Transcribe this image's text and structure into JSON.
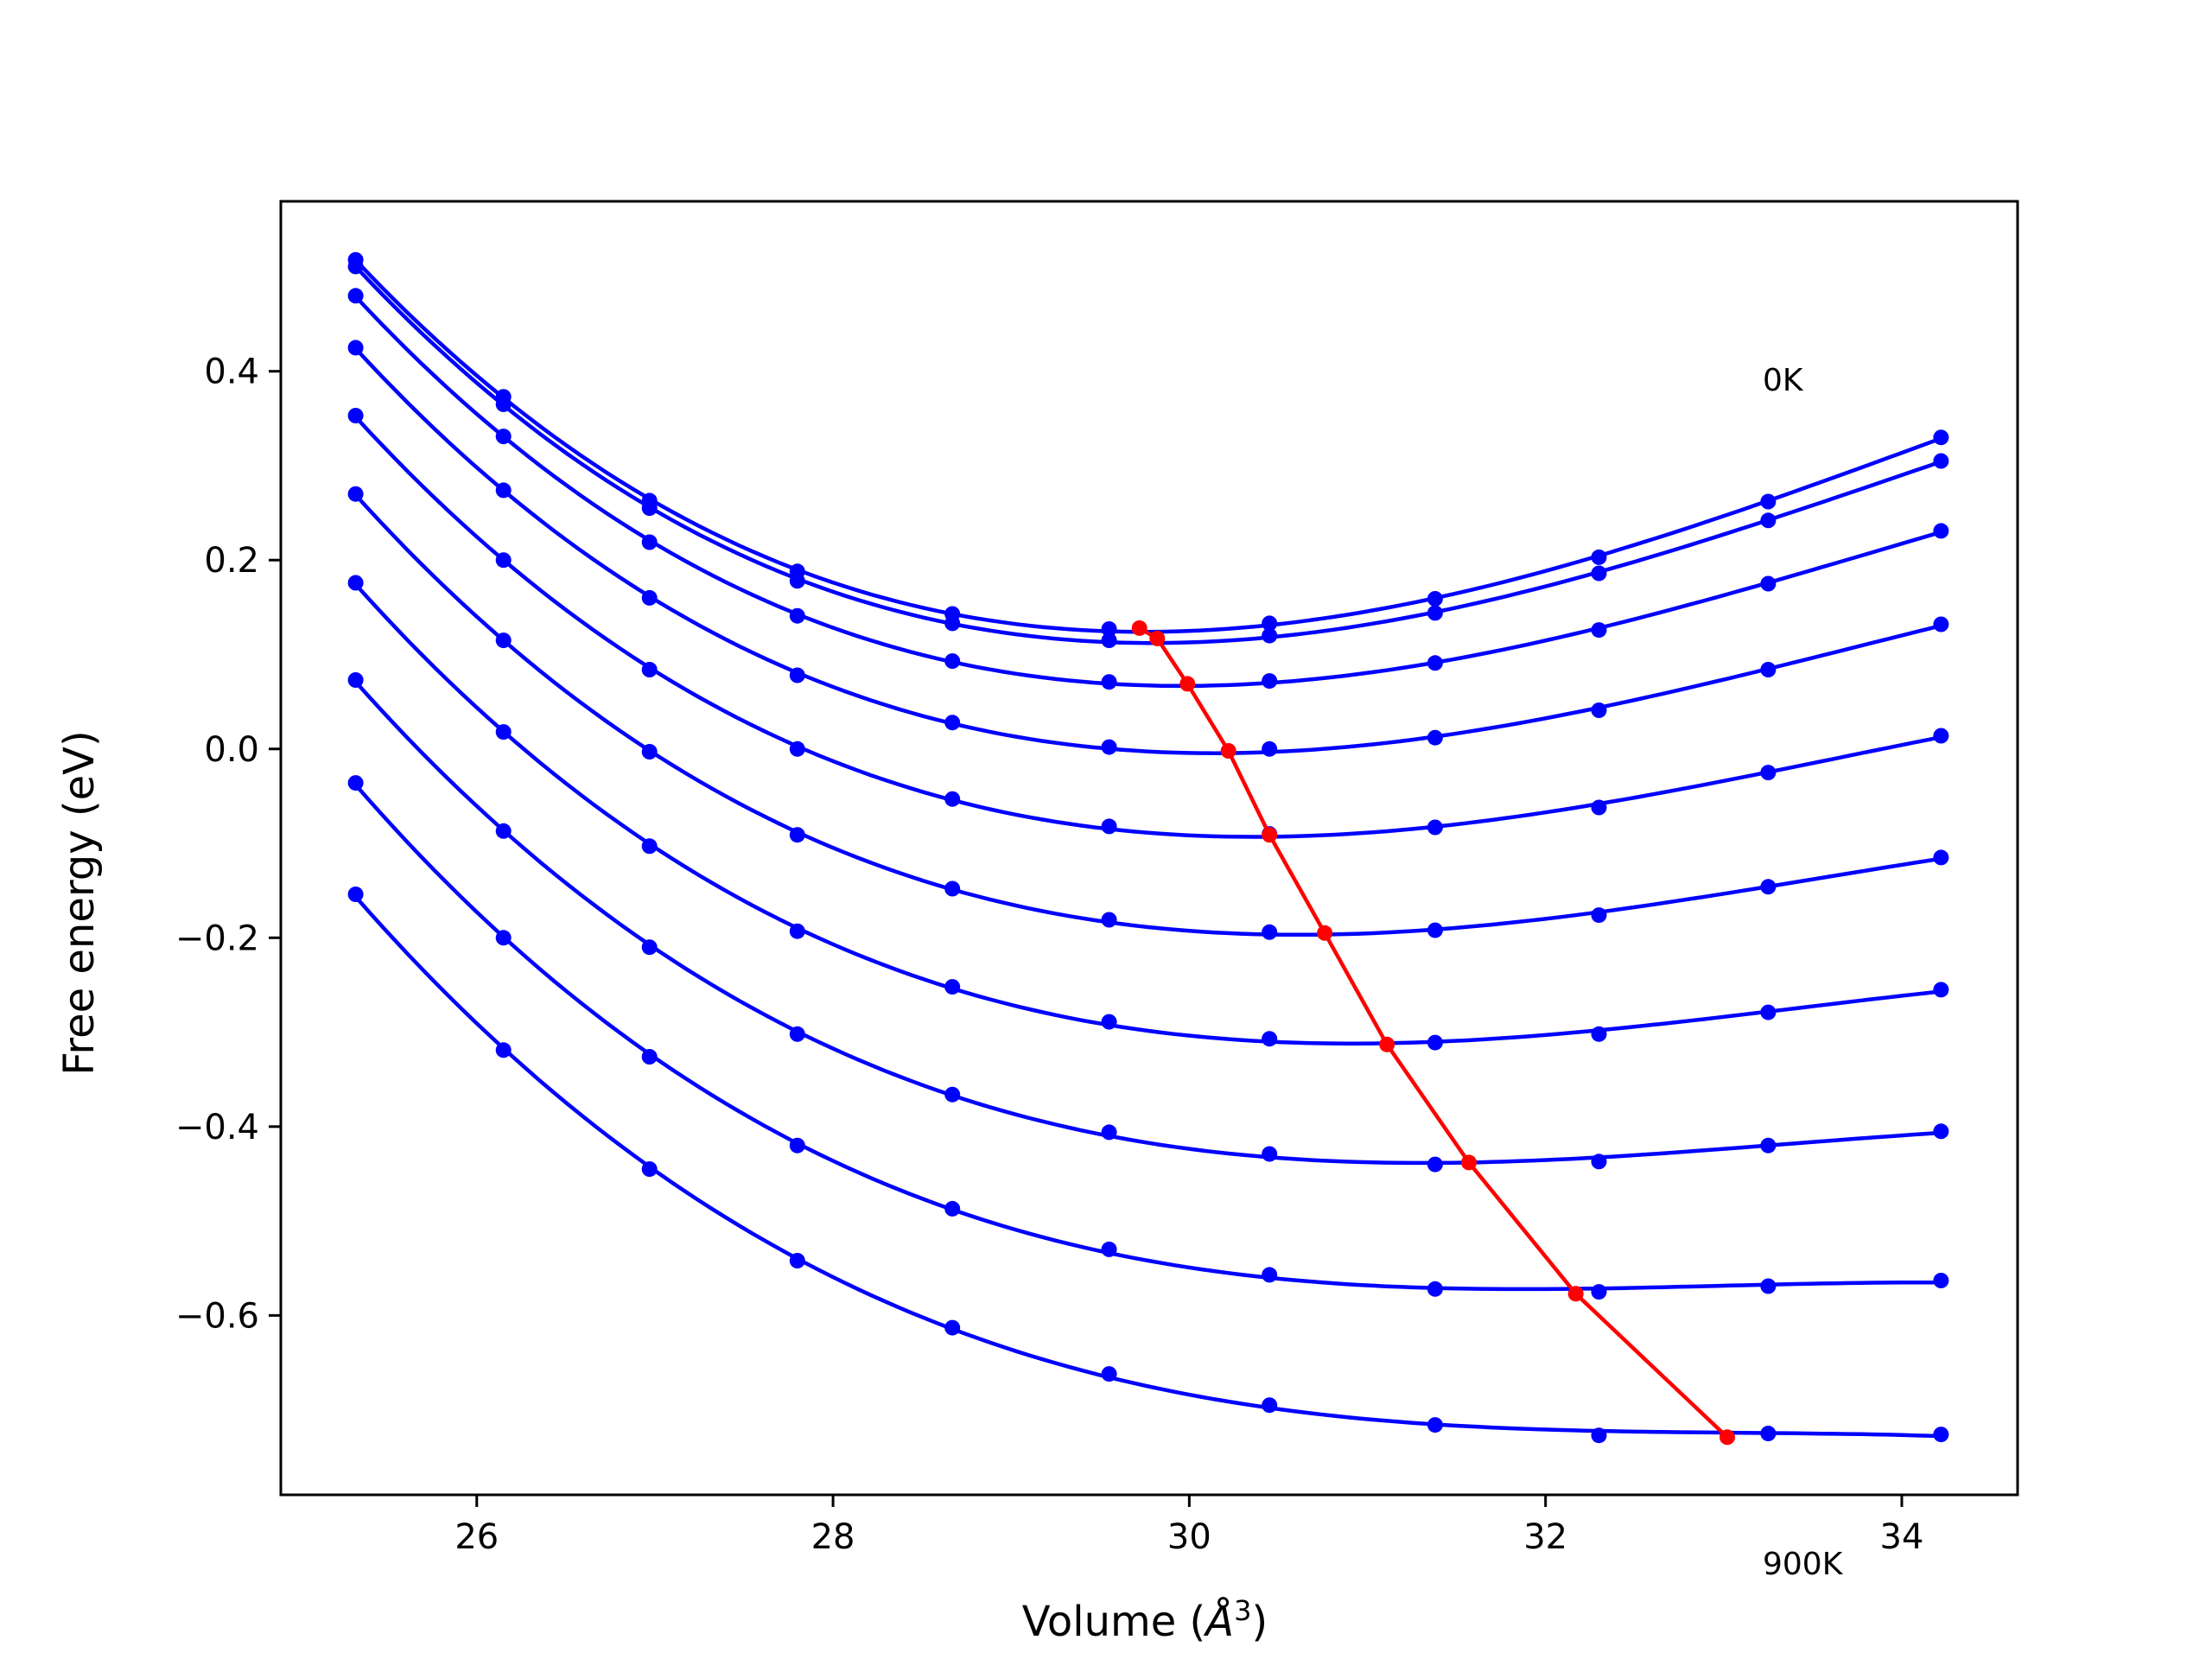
{
  "chart_data": {
    "type": "line",
    "xlabel": "Volume (",
    "xlabel_unit": "Å",
    "xlabel_sup": "3",
    "xlabel_end": ")",
    "ylabel": "Free energy (eV)",
    "xlim": [
      24.9,
      34.65
    ],
    "ylim": [
      -0.79,
      0.58
    ],
    "xticks": [
      26,
      28,
      30,
      32,
      34
    ],
    "xtick_labels": [
      "26",
      "28",
      "30",
      "32",
      "34"
    ],
    "yticks": [
      -0.6,
      -0.4,
      -0.2,
      0.0,
      0.2,
      0.4
    ],
    "ytick_labels": [
      "−0.6",
      "−0.4",
      "−0.2",
      "0.0",
      "0.2",
      "0.4"
    ],
    "grid": false,
    "annotations": [
      {
        "text": "0K",
        "x": 33.4,
        "y": 0.385
      },
      {
        "text": "900K",
        "x": 33.4,
        "y": -0.855
      }
    ],
    "x": [
      25.32,
      26.15,
      26.97,
      27.8,
      28.67,
      29.55,
      30.45,
      31.38,
      32.3,
      33.25,
      34.22
    ],
    "series": [
      {
        "color": "#0000ff",
        "values": [
          0.518,
          0.373,
          0.263,
          0.188,
          0.143,
          0.127,
          0.133,
          0.159,
          0.203,
          0.262,
          0.33
        ]
      },
      {
        "color": "#0000ff",
        "values": [
          0.511,
          0.365,
          0.255,
          0.178,
          0.133,
          0.115,
          0.12,
          0.144,
          0.186,
          0.242,
          0.305
        ]
      },
      {
        "color": "#0000ff",
        "values": [
          0.48,
          0.331,
          0.219,
          0.141,
          0.093,
          0.071,
          0.072,
          0.091,
          0.126,
          0.175,
          0.231
        ]
      },
      {
        "color": "#0000ff",
        "values": [
          0.425,
          0.274,
          0.16,
          0.078,
          0.028,
          0.002,
          0.0,
          0.012,
          0.041,
          0.084,
          0.132
        ]
      },
      {
        "color": "#0000ff",
        "values": [
          0.353,
          0.2,
          0.084,
          0.0,
          -0.053,
          -0.082,
          -0.09,
          -0.083,
          -0.062,
          -0.025,
          0.014
        ]
      },
      {
        "color": "#0000ff",
        "values": [
          0.27,
          0.115,
          -0.003,
          -0.091,
          -0.148,
          -0.181,
          -0.194,
          -0.192,
          -0.176,
          -0.146,
          -0.115
        ]
      },
      {
        "color": "#0000ff",
        "values": [
          0.176,
          0.018,
          -0.103,
          -0.193,
          -0.252,
          -0.289,
          -0.307,
          -0.311,
          -0.302,
          -0.279,
          -0.255
        ]
      },
      {
        "color": "#0000ff",
        "values": [
          0.073,
          -0.087,
          -0.21,
          -0.302,
          -0.366,
          -0.406,
          -0.429,
          -0.44,
          -0.437,
          -0.42,
          -0.405
        ]
      },
      {
        "color": "#0000ff",
        "values": [
          -0.036,
          -0.2,
          -0.326,
          -0.42,
          -0.487,
          -0.53,
          -0.557,
          -0.572,
          -0.575,
          -0.569,
          -0.563
        ]
      },
      {
        "color": "#0000ff",
        "values": [
          -0.154,
          -0.319,
          -0.445,
          -0.542,
          -0.613,
          -0.662,
          -0.695,
          -0.716,
          -0.727,
          -0.725,
          -0.726
        ]
      }
    ],
    "min_line": {
      "color": "#ff0000",
      "x": [
        29.72,
        29.82,
        29.99,
        30.22,
        30.45,
        30.76,
        31.11,
        31.57,
        32.17,
        33.02
      ],
      "y": [
        0.128,
        0.117,
        0.069,
        -0.002,
        -0.091,
        -0.195,
        -0.313,
        -0.438,
        -0.577,
        -0.729
      ]
    }
  }
}
